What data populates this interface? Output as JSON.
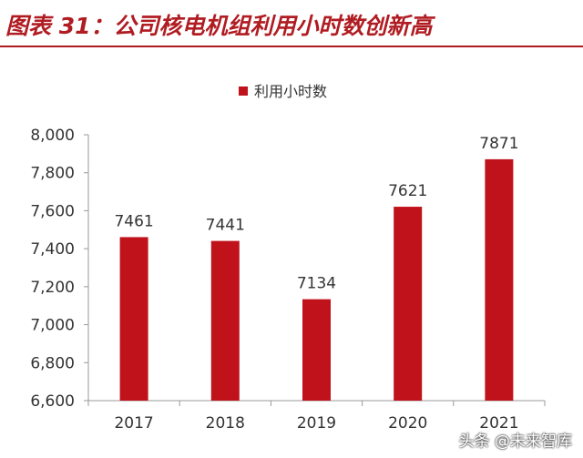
{
  "header": {
    "title": "图表 31：公司核电机组利用小时数创新高"
  },
  "watermark": {
    "text": "头条 @未来智库"
  },
  "colors": {
    "bar": "#c0121b",
    "title": "#b01c22",
    "axis": "#999999",
    "text": "#333333"
  },
  "chart_data": {
    "type": "bar",
    "categories": [
      "2017",
      "2018",
      "2019",
      "2020",
      "2021"
    ],
    "series": [
      {
        "name": "利用小时数",
        "values": [
          7461,
          7441,
          7134,
          7621,
          7871
        ]
      }
    ],
    "data_labels": [
      "7461",
      "7441",
      "7134",
      "7621",
      "7871"
    ],
    "y_ticks": [
      "6,600",
      "6,800",
      "7,000",
      "7,200",
      "7,400",
      "7,600",
      "7,800",
      "8,000"
    ],
    "ylim": [
      6600,
      8000
    ],
    "legend_position": "top-center",
    "grid": false
  }
}
